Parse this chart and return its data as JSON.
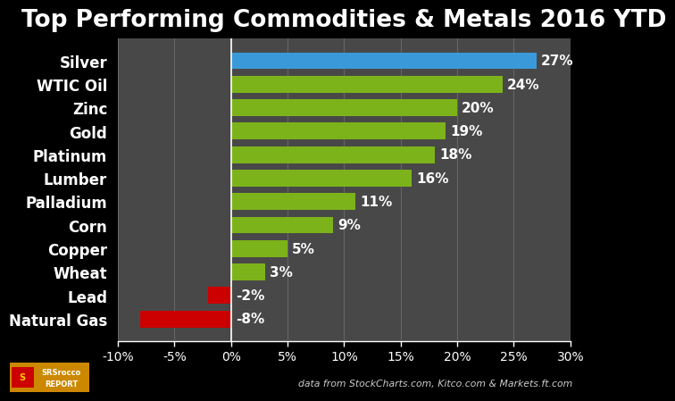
{
  "title": "Top Performing Commodities & Metals 2016 YTD",
  "categories": [
    "Natural Gas",
    "Lead",
    "Wheat",
    "Copper",
    "Corn",
    "Palladium",
    "Lumber",
    "Platinum",
    "Gold",
    "Zinc",
    "WTIC Oil",
    "Silver"
  ],
  "values": [
    -8,
    -2,
    3,
    5,
    9,
    11,
    16,
    18,
    19,
    20,
    24,
    27
  ],
  "bar_colors": [
    "#cc0000",
    "#cc0000",
    "#7db31a",
    "#7db31a",
    "#7db31a",
    "#7db31a",
    "#7db31a",
    "#7db31a",
    "#7db31a",
    "#7db31a",
    "#7db31a",
    "#3a9ad9"
  ],
  "xlim": [
    -10,
    30
  ],
  "xticks": [
    -10,
    -5,
    0,
    5,
    10,
    15,
    20,
    25,
    30
  ],
  "figure_bg": "#000000",
  "plot_bg": "#484848",
  "grid_color": "#666666",
  "text_color": "#ffffff",
  "title_fontsize": 19,
  "label_fontsize": 12,
  "value_fontsize": 11,
  "tick_fontsize": 10,
  "footer_text": "data from StockCharts.com, Kitco.com & Markets.ft.com",
  "logo_color": "#cc8800",
  "logo_line1": "SRSrocco",
  "logo_line2": "REPORT"
}
